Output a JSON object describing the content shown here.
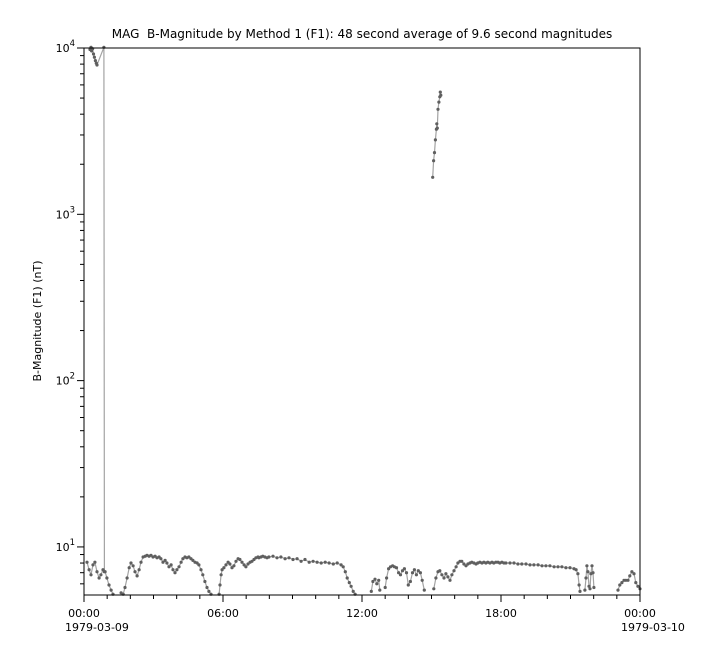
{
  "title": "MAG  B-Magnitude by Method 1 (F1): 48 second average of 9.6 second magnitudes",
  "colors": {
    "background": "#ffffff",
    "axis": "#000000",
    "marker": "#5f5f5f",
    "line": "#a3a3a3",
    "text": "#000000"
  },
  "chart_data": {
    "type": "scatter",
    "title": "MAG  B-Magnitude by Method 1 (F1): 48 second average of 9.6 second magnitudes",
    "xlabel": "",
    "ylabel": "B-Magnitude (F1) (nT)",
    "x_unit": "hours since 1979-03-09 00:00",
    "xlim": [
      0,
      24
    ],
    "ylim": [
      5.14,
      10000
    ],
    "yscale": "log",
    "grid": false,
    "legend": "none",
    "x_ticks": [
      {
        "hour": 0,
        "label": "00:00"
      },
      {
        "hour": 6,
        "label": "06:00"
      },
      {
        "hour": 12,
        "label": "12:00"
      },
      {
        "hour": 18,
        "label": "18:00"
      },
      {
        "hour": 24,
        "label": "00:00"
      }
    ],
    "x_minor_tick_interval_hours": 1,
    "x_date_labels": [
      {
        "hour": 0,
        "label": "1979-03-09"
      },
      {
        "hour": 24,
        "label": "1979-03-10"
      }
    ],
    "y_major_ticks": [
      {
        "value": 10,
        "exp": "1"
      },
      {
        "value": 100,
        "exp": "2"
      },
      {
        "value": 1000,
        "exp": "3"
      },
      {
        "value": 10000,
        "exp": "4"
      }
    ],
    "series": [
      {
        "name": "high_field_start_of_day",
        "points": [
          [
            0.26,
            9800
          ],
          [
            0.3,
            10100
          ],
          [
            0.33,
            9600
          ],
          [
            0.37,
            9900
          ],
          [
            0.41,
            9200
          ],
          [
            0.45,
            8800
          ],
          [
            0.49,
            8400
          ],
          [
            0.53,
            8100
          ],
          [
            0.56,
            7900
          ],
          [
            0.86,
            10100
          ],
          [
            0.88,
            7.1
          ]
        ]
      },
      {
        "name": "spike_1515_UT",
        "points": [
          [
            15.05,
            1670
          ],
          [
            15.09,
            2100
          ],
          [
            15.13,
            2350
          ],
          [
            15.17,
            2800
          ],
          [
            15.21,
            3250
          ],
          [
            15.23,
            3500
          ],
          [
            15.25,
            3300
          ],
          [
            15.28,
            4280
          ],
          [
            15.32,
            4730
          ],
          [
            15.36,
            5090
          ],
          [
            15.38,
            5430
          ],
          [
            15.4,
            5200
          ]
        ]
      },
      {
        "name": "background_field",
        "points": [
          [
            0.13,
            8.1
          ],
          [
            0.22,
            7.3
          ],
          [
            0.3,
            6.8
          ],
          [
            0.39,
            7.8
          ],
          [
            0.47,
            8.1
          ],
          [
            0.56,
            7.1
          ],
          [
            0.65,
            6.5
          ],
          [
            0.73,
            6.8
          ],
          [
            0.82,
            7.3
          ],
          [
            0.91,
            7.1
          ],
          [
            0.99,
            6.5
          ],
          [
            1.08,
            5.9
          ],
          [
            1.17,
            5.5
          ],
          [
            1.25,
            5.2
          ],
          null,
          [
            1.6,
            5.3
          ],
          [
            1.69,
            5.2
          ],
          [
            1.77,
            5.7
          ],
          [
            1.86,
            6.5
          ],
          [
            1.95,
            7.5
          ],
          [
            2.03,
            8.0
          ],
          [
            2.12,
            7.7
          ],
          [
            2.2,
            7.1
          ],
          [
            2.29,
            6.7
          ],
          [
            2.38,
            7.3
          ],
          [
            2.46,
            8.1
          ],
          [
            2.55,
            8.7
          ],
          [
            2.64,
            8.8
          ],
          [
            2.72,
            8.9
          ],
          [
            2.81,
            8.8
          ],
          [
            2.89,
            8.9
          ],
          [
            2.98,
            8.7
          ],
          [
            3.07,
            8.8
          ],
          [
            3.15,
            8.6
          ],
          [
            3.24,
            8.7
          ],
          [
            3.32,
            8.5
          ],
          [
            3.41,
            8.1
          ],
          [
            3.5,
            8.3
          ],
          [
            3.58,
            8.0
          ],
          [
            3.67,
            7.6
          ],
          [
            3.76,
            7.8
          ],
          [
            3.84,
            7.3
          ],
          [
            3.93,
            7.0
          ],
          [
            4.01,
            7.3
          ],
          [
            4.1,
            7.6
          ],
          [
            4.19,
            8.1
          ],
          [
            4.27,
            8.5
          ],
          [
            4.36,
            8.7
          ],
          [
            4.44,
            8.6
          ],
          [
            4.53,
            8.7
          ],
          [
            4.62,
            8.5
          ],
          [
            4.7,
            8.3
          ],
          [
            4.79,
            8.1
          ],
          [
            4.88,
            8.0
          ],
          [
            4.96,
            7.8
          ],
          [
            5.05,
            7.3
          ],
          [
            5.13,
            6.8
          ],
          [
            5.22,
            6.2
          ],
          [
            5.31,
            5.7
          ],
          [
            5.39,
            5.4
          ],
          [
            5.48,
            5.2
          ],
          null,
          [
            5.83,
            5.2
          ],
          [
            5.87,
            5.9
          ],
          [
            5.92,
            6.8
          ],
          [
            5.96,
            7.3
          ],
          [
            6.04,
            7.5
          ],
          [
            6.13,
            7.8
          ],
          [
            6.22,
            8.1
          ],
          [
            6.3,
            7.9
          ],
          [
            6.39,
            7.5
          ],
          [
            6.47,
            7.7
          ],
          [
            6.56,
            8.2
          ],
          [
            6.65,
            8.5
          ],
          [
            6.73,
            8.4
          ],
          [
            6.82,
            8.1
          ],
          [
            6.91,
            7.8
          ],
          [
            6.99,
            7.6
          ],
          [
            7.08,
            7.9
          ],
          [
            7.17,
            8.1
          ],
          [
            7.25,
            8.2
          ],
          [
            7.34,
            8.4
          ],
          [
            7.42,
            8.6
          ],
          [
            7.51,
            8.7
          ],
          [
            7.55,
            8.6
          ],
          [
            7.64,
            8.7
          ],
          [
            7.72,
            8.8
          ],
          [
            7.81,
            8.7
          ],
          [
            7.9,
            8.6
          ],
          [
            7.98,
            8.7
          ],
          [
            8.16,
            8.8
          ],
          [
            8.33,
            8.6
          ],
          [
            8.5,
            8.7
          ],
          [
            8.68,
            8.5
          ],
          [
            8.85,
            8.6
          ],
          [
            9.02,
            8.4
          ],
          [
            9.2,
            8.5
          ],
          [
            9.37,
            8.2
          ],
          [
            9.54,
            8.4
          ],
          [
            9.72,
            8.1
          ],
          [
            9.89,
            8.2
          ],
          [
            10.06,
            8.1
          ],
          [
            10.24,
            8.0
          ],
          [
            10.41,
            8.1
          ],
          [
            10.58,
            8.0
          ],
          [
            10.76,
            7.9
          ],
          [
            10.93,
            8.0
          ],
          [
            11.1,
            7.8
          ],
          [
            11.19,
            7.6
          ],
          [
            11.28,
            7.1
          ],
          [
            11.36,
            6.5
          ],
          [
            11.45,
            6.1
          ],
          [
            11.53,
            5.8
          ],
          [
            11.62,
            5.4
          ],
          [
            11.7,
            5.2
          ],
          null,
          [
            12.4,
            5.4
          ],
          [
            12.47,
            6.2
          ],
          [
            12.56,
            6.4
          ],
          [
            12.64,
            6.0
          ],
          [
            12.72,
            6.3
          ],
          [
            12.77,
            5.5
          ],
          null,
          [
            13.0,
            5.7
          ],
          [
            13.06,
            6.5
          ],
          [
            13.15,
            7.4
          ],
          [
            13.23,
            7.6
          ],
          [
            13.32,
            7.7
          ],
          [
            13.4,
            7.6
          ],
          [
            13.49,
            7.5
          ],
          [
            13.58,
            7.0
          ],
          [
            13.66,
            6.8
          ],
          [
            13.75,
            7.2
          ],
          [
            13.83,
            7.4
          ],
          [
            13.92,
            7.0
          ],
          [
            14.0,
            5.9
          ],
          [
            14.09,
            6.2
          ],
          [
            14.18,
            7.0
          ],
          [
            14.26,
            7.3
          ],
          [
            14.35,
            6.8
          ],
          [
            14.43,
            7.2
          ],
          [
            14.52,
            7.0
          ],
          [
            14.6,
            6.3
          ],
          [
            14.69,
            5.5
          ],
          null,
          [
            15.1,
            5.6
          ],
          [
            15.19,
            6.5
          ],
          [
            15.28,
            7.1
          ],
          [
            15.36,
            7.2
          ],
          [
            15.45,
            6.8
          ],
          [
            15.54,
            6.5
          ],
          [
            15.62,
            6.9
          ],
          [
            15.71,
            6.6
          ],
          [
            15.8,
            6.3
          ],
          [
            15.88,
            6.8
          ],
          [
            15.97,
            7.2
          ],
          [
            16.06,
            7.6
          ],
          [
            16.14,
            8.0
          ],
          [
            16.23,
            8.2
          ],
          [
            16.31,
            8.2
          ],
          [
            16.4,
            7.9
          ],
          [
            16.49,
            7.7
          ],
          [
            16.57,
            7.9
          ],
          [
            16.66,
            8.0
          ],
          [
            16.74,
            8.1
          ],
          [
            16.83,
            8.0
          ],
          [
            16.92,
            7.9
          ],
          [
            17.0,
            8.0
          ],
          [
            17.09,
            8.1
          ],
          [
            17.18,
            8.0
          ],
          [
            17.26,
            8.1
          ],
          [
            17.35,
            8.0
          ],
          [
            17.43,
            8.1
          ],
          [
            17.52,
            8.0
          ],
          [
            17.61,
            8.1
          ],
          [
            17.69,
            8.0
          ],
          [
            17.78,
            8.1
          ],
          [
            17.87,
            8.1
          ],
          [
            17.95,
            8.0
          ],
          [
            18.04,
            8.1
          ],
          [
            18.13,
            8.0
          ],
          [
            18.21,
            8.0
          ],
          [
            18.39,
            8.0
          ],
          [
            18.56,
            8.0
          ],
          [
            18.73,
            7.9
          ],
          [
            18.9,
            7.9
          ],
          [
            19.08,
            7.9
          ],
          [
            19.25,
            7.8
          ],
          [
            19.42,
            7.8
          ],
          [
            19.6,
            7.8
          ],
          [
            19.77,
            7.7
          ],
          [
            19.94,
            7.7
          ],
          [
            20.11,
            7.7
          ],
          [
            20.29,
            7.6
          ],
          [
            20.46,
            7.6
          ],
          [
            20.63,
            7.6
          ],
          [
            20.8,
            7.5
          ],
          [
            20.98,
            7.5
          ],
          [
            21.15,
            7.4
          ],
          [
            21.24,
            7.3
          ],
          [
            21.32,
            6.9
          ],
          [
            21.37,
            5.9
          ],
          [
            21.41,
            5.4
          ],
          null,
          [
            21.62,
            5.5
          ],
          [
            21.67,
            6.5
          ],
          [
            21.71,
            7.7
          ],
          [
            21.75,
            7.1
          ],
          [
            21.8,
            5.8
          ],
          null,
          [
            21.84,
            5.6
          ],
          [
            21.88,
            6.9
          ],
          [
            21.93,
            7.7
          ],
          [
            21.97,
            7.0
          ],
          [
            22.01,
            5.7
          ],
          null,
          [
            23.05,
            5.5
          ],
          [
            23.13,
            5.9
          ],
          [
            23.22,
            6.1
          ],
          [
            23.31,
            6.3
          ],
          [
            23.39,
            6.3
          ],
          [
            23.48,
            6.3
          ],
          [
            23.56,
            6.7
          ],
          [
            23.65,
            7.1
          ],
          [
            23.74,
            6.9
          ],
          [
            23.82,
            6.1
          ],
          [
            23.91,
            5.8
          ],
          [
            24.0,
            5.6
          ]
        ]
      }
    ]
  }
}
